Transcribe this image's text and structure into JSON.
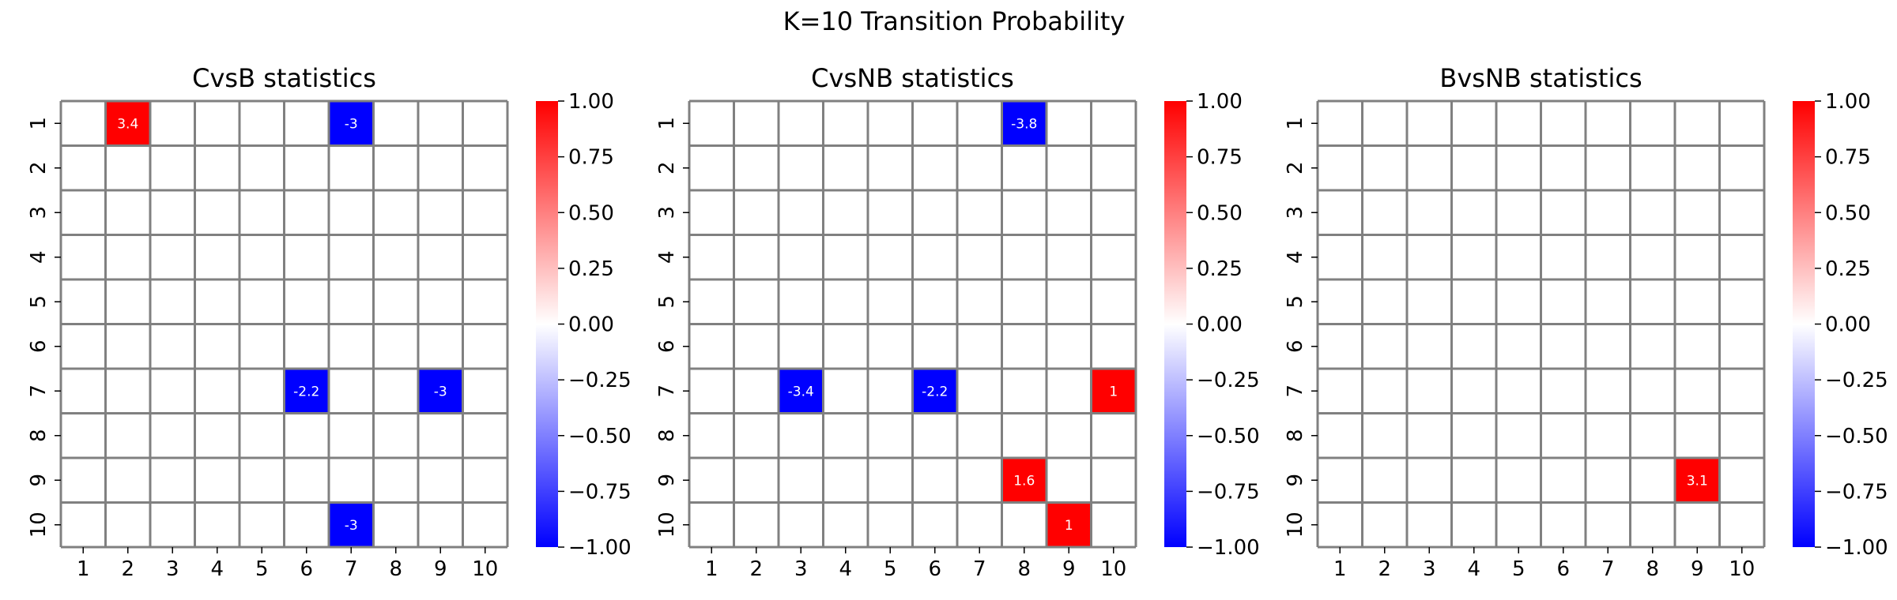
{
  "figure": {
    "suptitle": "K=10 Transition Probability"
  },
  "colors": {
    "positive": "#ff0000",
    "negative": "#0000ff",
    "neutral": "#ffffff",
    "gridline": "#808080"
  },
  "chart_data": [
    {
      "type": "heatmap",
      "title": "CvsB statistics",
      "xlabel": "",
      "ylabel": "",
      "x_categories": [
        "1",
        "2",
        "3",
        "4",
        "5",
        "6",
        "7",
        "8",
        "9",
        "10"
      ],
      "y_categories": [
        "1",
        "2",
        "3",
        "4",
        "5",
        "6",
        "7",
        "8",
        "9",
        "10"
      ],
      "colorbar": {
        "range": [
          -1.0,
          1.0
        ],
        "ticks": [
          "1.00",
          "0.75",
          "0.50",
          "0.25",
          "0.00",
          "−0.25",
          "−0.50",
          "−0.75",
          "−1.00"
        ],
        "tick_values": [
          1.0,
          0.75,
          0.5,
          0.25,
          0.0,
          -0.25,
          -0.5,
          -0.75,
          -1.0
        ],
        "cmap": "bwr"
      },
      "cells": [
        {
          "row": 1,
          "col": 2,
          "value": 3.4,
          "label": "3.4"
        },
        {
          "row": 1,
          "col": 7,
          "value": -3,
          "label": "-3"
        },
        {
          "row": 7,
          "col": 6,
          "value": -2.2,
          "label": "-2.2"
        },
        {
          "row": 7,
          "col": 9,
          "value": -3,
          "label": "-3"
        },
        {
          "row": 10,
          "col": 7,
          "value": -3,
          "label": "-3"
        }
      ]
    },
    {
      "type": "heatmap",
      "title": "CvsNB statistics",
      "xlabel": "",
      "ylabel": "",
      "x_categories": [
        "1",
        "2",
        "3",
        "4",
        "5",
        "6",
        "7",
        "8",
        "9",
        "10"
      ],
      "y_categories": [
        "1",
        "2",
        "3",
        "4",
        "5",
        "6",
        "7",
        "8",
        "9",
        "10"
      ],
      "colorbar": {
        "range": [
          -1.0,
          1.0
        ],
        "ticks": [
          "1.00",
          "0.75",
          "0.50",
          "0.25",
          "0.00",
          "−0.25",
          "−0.50",
          "−0.75",
          "−1.00"
        ],
        "tick_values": [
          1.0,
          0.75,
          0.5,
          0.25,
          0.0,
          -0.25,
          -0.5,
          -0.75,
          -1.0
        ],
        "cmap": "bwr"
      },
      "cells": [
        {
          "row": 1,
          "col": 8,
          "value": -3.8,
          "label": "-3.8"
        },
        {
          "row": 7,
          "col": 3,
          "value": -3.4,
          "label": "-3.4"
        },
        {
          "row": 7,
          "col": 6,
          "value": -2.2,
          "label": "-2.2"
        },
        {
          "row": 7,
          "col": 10,
          "value": 1,
          "label": "1"
        },
        {
          "row": 9,
          "col": 8,
          "value": 1.6,
          "label": "1.6"
        },
        {
          "row": 10,
          "col": 9,
          "value": 1,
          "label": "1"
        }
      ]
    },
    {
      "type": "heatmap",
      "title": "BvsNB statistics",
      "xlabel": "",
      "ylabel": "",
      "x_categories": [
        "1",
        "2",
        "3",
        "4",
        "5",
        "6",
        "7",
        "8",
        "9",
        "10"
      ],
      "y_categories": [
        "1",
        "2",
        "3",
        "4",
        "5",
        "6",
        "7",
        "8",
        "9",
        "10"
      ],
      "colorbar": {
        "range": [
          -1.0,
          1.0
        ],
        "ticks": [
          "1.00",
          "0.75",
          "0.50",
          "0.25",
          "0.00",
          "−0.25",
          "−0.50",
          "−0.75",
          "−1.00"
        ],
        "tick_values": [
          1.0,
          0.75,
          0.5,
          0.25,
          0.0,
          -0.25,
          -0.5,
          -0.75,
          -1.0
        ],
        "cmap": "bwr"
      },
      "cells": [
        {
          "row": 9,
          "col": 9,
          "value": 3.1,
          "label": "3.1"
        }
      ]
    }
  ]
}
